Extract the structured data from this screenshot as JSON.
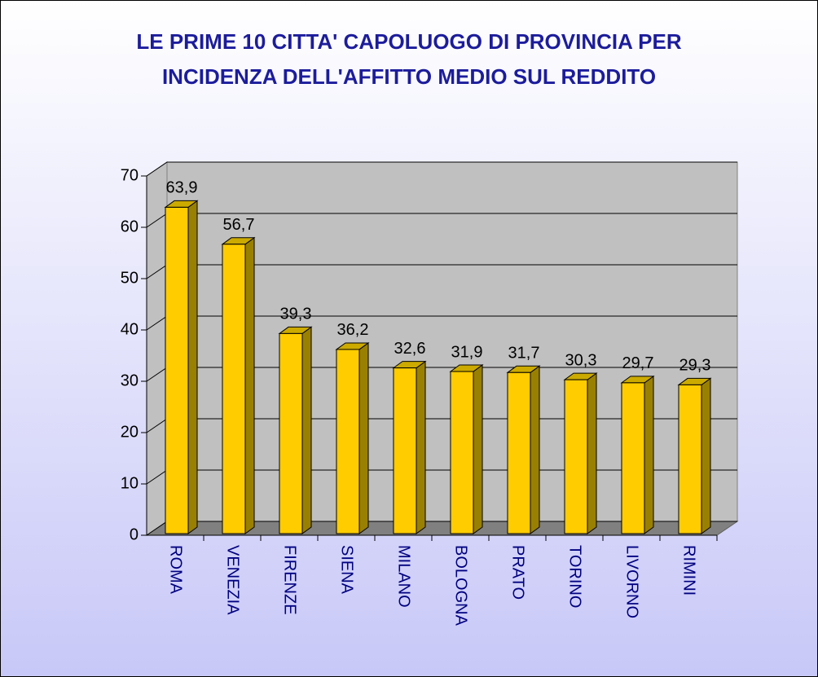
{
  "chart_data": {
    "type": "bar3d",
    "title": "LE PRIME 10 CITTA' CAPOLUOGO DI PROVINCIA PER INCIDENZA DELL'AFFITTO MEDIO SUL REDDITO",
    "categories": [
      "ROMA",
      "VENEZIA",
      "FIRENZE",
      "SIENA",
      "MILANO",
      "BOLOGNA",
      "PRATO",
      "TORINO",
      "LIVORNO",
      "RIMINI"
    ],
    "values": [
      63.9,
      56.7,
      39.3,
      36.2,
      32.6,
      31.9,
      31.7,
      30.3,
      29.7,
      29.3
    ],
    "value_labels": [
      "63,9",
      "56,7",
      "39,3",
      "36,2",
      "32,6",
      "31,9",
      "31,7",
      "30,3",
      "29,7",
      "29,3"
    ],
    "color": "#ffcc00",
    "ylim": [
      0,
      70
    ],
    "yticks": [
      0,
      10,
      20,
      30,
      40,
      50,
      60,
      70
    ],
    "grid": true
  }
}
